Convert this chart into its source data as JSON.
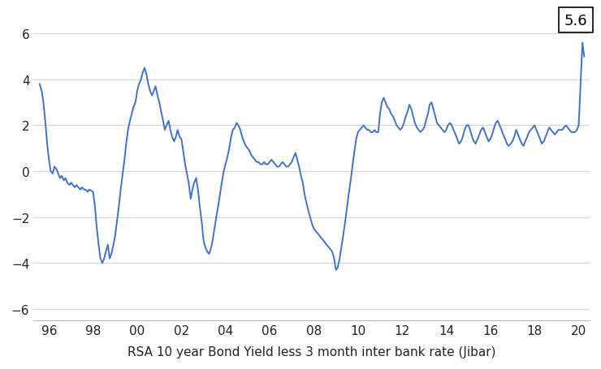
{
  "title": "",
  "xlabel": "RSA 10 year Bond Yield less 3 month inter bank rate (Jibar)",
  "ylabel": "",
  "line_color": "#4472C4",
  "line_width": 1.4,
  "background_color": "#ffffff",
  "annotation_value": "5.6",
  "ylim": [
    -6.5,
    7.0
  ],
  "yticks": [
    -6,
    -4,
    -2,
    0,
    2,
    4,
    6
  ],
  "xtick_labels": [
    "96",
    "98",
    "00",
    "02",
    "04",
    "06",
    "08",
    "10",
    "12",
    "14",
    "16",
    "18",
    "20"
  ],
  "xtick_positions": [
    1996,
    1998,
    2000,
    2002,
    2004,
    2006,
    2008,
    2010,
    2012,
    2014,
    2016,
    2018,
    2020
  ],
  "xlim": [
    1995.3,
    2020.5
  ],
  "data": {
    "dates": [
      1995.58,
      1995.67,
      1995.75,
      1995.83,
      1995.92,
      1996.0,
      1996.08,
      1996.17,
      1996.25,
      1996.33,
      1996.42,
      1996.5,
      1996.58,
      1996.67,
      1996.75,
      1996.83,
      1996.92,
      1997.0,
      1997.08,
      1997.17,
      1997.25,
      1997.33,
      1997.42,
      1997.5,
      1997.58,
      1997.67,
      1997.75,
      1997.83,
      1997.92,
      1998.0,
      1998.08,
      1998.17,
      1998.25,
      1998.33,
      1998.42,
      1998.5,
      1998.58,
      1998.67,
      1998.75,
      1998.83,
      1998.92,
      1999.0,
      1999.08,
      1999.17,
      1999.25,
      1999.33,
      1999.42,
      1999.5,
      1999.58,
      1999.67,
      1999.75,
      1999.83,
      1999.92,
      2000.0,
      2000.08,
      2000.17,
      2000.25,
      2000.33,
      2000.42,
      2000.5,
      2000.58,
      2000.67,
      2000.75,
      2000.83,
      2000.92,
      2001.0,
      2001.08,
      2001.17,
      2001.25,
      2001.33,
      2001.42,
      2001.5,
      2001.58,
      2001.67,
      2001.75,
      2001.83,
      2001.92,
      2002.0,
      2002.08,
      2002.17,
      2002.25,
      2002.33,
      2002.42,
      2002.5,
      2002.58,
      2002.67,
      2002.75,
      2002.83,
      2002.92,
      2003.0,
      2003.08,
      2003.17,
      2003.25,
      2003.33,
      2003.42,
      2003.5,
      2003.58,
      2003.67,
      2003.75,
      2003.83,
      2003.92,
      2004.0,
      2004.08,
      2004.17,
      2004.25,
      2004.33,
      2004.42,
      2004.5,
      2004.58,
      2004.67,
      2004.75,
      2004.83,
      2004.92,
      2005.0,
      2005.08,
      2005.17,
      2005.25,
      2005.33,
      2005.42,
      2005.5,
      2005.58,
      2005.67,
      2005.75,
      2005.83,
      2005.92,
      2006.0,
      2006.08,
      2006.17,
      2006.25,
      2006.33,
      2006.42,
      2006.5,
      2006.58,
      2006.67,
      2006.75,
      2006.83,
      2006.92,
      2007.0,
      2007.08,
      2007.17,
      2007.25,
      2007.33,
      2007.42,
      2007.5,
      2007.58,
      2007.67,
      2007.75,
      2007.83,
      2007.92,
      2008.0,
      2008.08,
      2008.17,
      2008.25,
      2008.33,
      2008.42,
      2008.5,
      2008.58,
      2008.67,
      2008.75,
      2008.83,
      2008.92,
      2009.0,
      2009.08,
      2009.17,
      2009.25,
      2009.33,
      2009.42,
      2009.5,
      2009.58,
      2009.67,
      2009.75,
      2009.83,
      2009.92,
      2010.0,
      2010.08,
      2010.17,
      2010.25,
      2010.33,
      2010.42,
      2010.5,
      2010.58,
      2010.67,
      2010.75,
      2010.83,
      2010.92,
      2011.0,
      2011.08,
      2011.17,
      2011.25,
      2011.33,
      2011.42,
      2011.5,
      2011.58,
      2011.67,
      2011.75,
      2011.83,
      2011.92,
      2012.0,
      2012.08,
      2012.17,
      2012.25,
      2012.33,
      2012.42,
      2012.5,
      2012.58,
      2012.67,
      2012.75,
      2012.83,
      2012.92,
      2013.0,
      2013.08,
      2013.17,
      2013.25,
      2013.33,
      2013.42,
      2013.5,
      2013.58,
      2013.67,
      2013.75,
      2013.83,
      2013.92,
      2014.0,
      2014.08,
      2014.17,
      2014.25,
      2014.33,
      2014.42,
      2014.5,
      2014.58,
      2014.67,
      2014.75,
      2014.83,
      2014.92,
      2015.0,
      2015.08,
      2015.17,
      2015.25,
      2015.33,
      2015.42,
      2015.5,
      2015.58,
      2015.67,
      2015.75,
      2015.83,
      2015.92,
      2016.0,
      2016.08,
      2016.17,
      2016.25,
      2016.33,
      2016.42,
      2016.5,
      2016.58,
      2016.67,
      2016.75,
      2016.83,
      2016.92,
      2017.0,
      2017.08,
      2017.17,
      2017.25,
      2017.33,
      2017.42,
      2017.5,
      2017.58,
      2017.67,
      2017.75,
      2017.83,
      2017.92,
      2018.0,
      2018.08,
      2018.17,
      2018.25,
      2018.33,
      2018.42,
      2018.5,
      2018.58,
      2018.67,
      2018.75,
      2018.83,
      2018.92,
      2019.0,
      2019.08,
      2019.17,
      2019.25,
      2019.33,
      2019.42,
      2019.5,
      2019.58,
      2019.67,
      2019.75,
      2019.83,
      2019.92,
      2020.0,
      2020.17,
      2020.25
    ],
    "values": [
      3.8,
      3.5,
      3.0,
      2.2,
      1.2,
      0.5,
      0.0,
      -0.1,
      0.2,
      0.1,
      -0.1,
      -0.3,
      -0.2,
      -0.4,
      -0.3,
      -0.5,
      -0.6,
      -0.5,
      -0.6,
      -0.7,
      -0.6,
      -0.7,
      -0.8,
      -0.7,
      -0.8,
      -0.8,
      -0.9,
      -0.8,
      -0.85,
      -0.9,
      -1.5,
      -2.5,
      -3.2,
      -3.8,
      -4.0,
      -3.8,
      -3.5,
      -3.2,
      -3.8,
      -3.6,
      -3.2,
      -2.8,
      -2.2,
      -1.5,
      -0.8,
      -0.2,
      0.5,
      1.2,
      1.8,
      2.2,
      2.5,
      2.8,
      3.0,
      3.5,
      3.8,
      4.0,
      4.3,
      4.5,
      4.2,
      3.8,
      3.5,
      3.3,
      3.5,
      3.7,
      3.3,
      3.0,
      2.6,
      2.2,
      1.8,
      2.0,
      2.2,
      1.8,
      1.5,
      1.3,
      1.5,
      1.8,
      1.5,
      1.4,
      0.9,
      0.3,
      -0.1,
      -0.5,
      -1.2,
      -0.8,
      -0.5,
      -0.3,
      -0.8,
      -1.5,
      -2.2,
      -3.0,
      -3.3,
      -3.5,
      -3.6,
      -3.4,
      -3.0,
      -2.5,
      -2.0,
      -1.5,
      -1.0,
      -0.5,
      0.0,
      0.3,
      0.6,
      1.0,
      1.5,
      1.8,
      1.9,
      2.1,
      2.0,
      1.8,
      1.5,
      1.3,
      1.1,
      1.0,
      0.9,
      0.7,
      0.6,
      0.5,
      0.4,
      0.4,
      0.3,
      0.3,
      0.4,
      0.3,
      0.3,
      0.4,
      0.5,
      0.4,
      0.3,
      0.2,
      0.2,
      0.3,
      0.4,
      0.3,
      0.2,
      0.2,
      0.3,
      0.4,
      0.6,
      0.8,
      0.5,
      0.2,
      -0.2,
      -0.5,
      -1.0,
      -1.4,
      -1.7,
      -2.0,
      -2.3,
      -2.5,
      -2.6,
      -2.7,
      -2.8,
      -2.9,
      -3.0,
      -3.1,
      -3.2,
      -3.3,
      -3.4,
      -3.5,
      -3.8,
      -4.3,
      -4.2,
      -3.8,
      -3.3,
      -2.8,
      -2.2,
      -1.6,
      -1.0,
      -0.4,
      0.2,
      0.8,
      1.4,
      1.7,
      1.8,
      1.9,
      2.0,
      1.9,
      1.8,
      1.8,
      1.7,
      1.7,
      1.8,
      1.7,
      1.7,
      2.5,
      3.0,
      3.2,
      3.0,
      2.8,
      2.7,
      2.5,
      2.4,
      2.2,
      2.0,
      1.9,
      1.8,
      1.9,
      2.1,
      2.4,
      2.6,
      2.9,
      2.7,
      2.4,
      2.1,
      1.9,
      1.8,
      1.7,
      1.8,
      1.9,
      2.2,
      2.5,
      2.9,
      3.0,
      2.7,
      2.4,
      2.1,
      2.0,
      1.9,
      1.8,
      1.7,
      1.8,
      2.0,
      2.1,
      2.0,
      1.8,
      1.6,
      1.4,
      1.2,
      1.3,
      1.5,
      1.8,
      2.0,
      2.0,
      1.8,
      1.5,
      1.3,
      1.2,
      1.4,
      1.6,
      1.8,
      1.9,
      1.7,
      1.5,
      1.3,
      1.4,
      1.6,
      1.9,
      2.1,
      2.2,
      2.0,
      1.8,
      1.6,
      1.4,
      1.2,
      1.1,
      1.2,
      1.3,
      1.5,
      1.8,
      1.6,
      1.4,
      1.2,
      1.1,
      1.3,
      1.5,
      1.7,
      1.8,
      1.9,
      2.0,
      1.8,
      1.6,
      1.4,
      1.2,
      1.3,
      1.5,
      1.7,
      1.9,
      1.8,
      1.7,
      1.6,
      1.7,
      1.8,
      1.8,
      1.8,
      1.9,
      2.0,
      1.9,
      1.8,
      1.7,
      1.7,
      1.7,
      1.8,
      2.0,
      5.6,
      5.0
    ]
  }
}
